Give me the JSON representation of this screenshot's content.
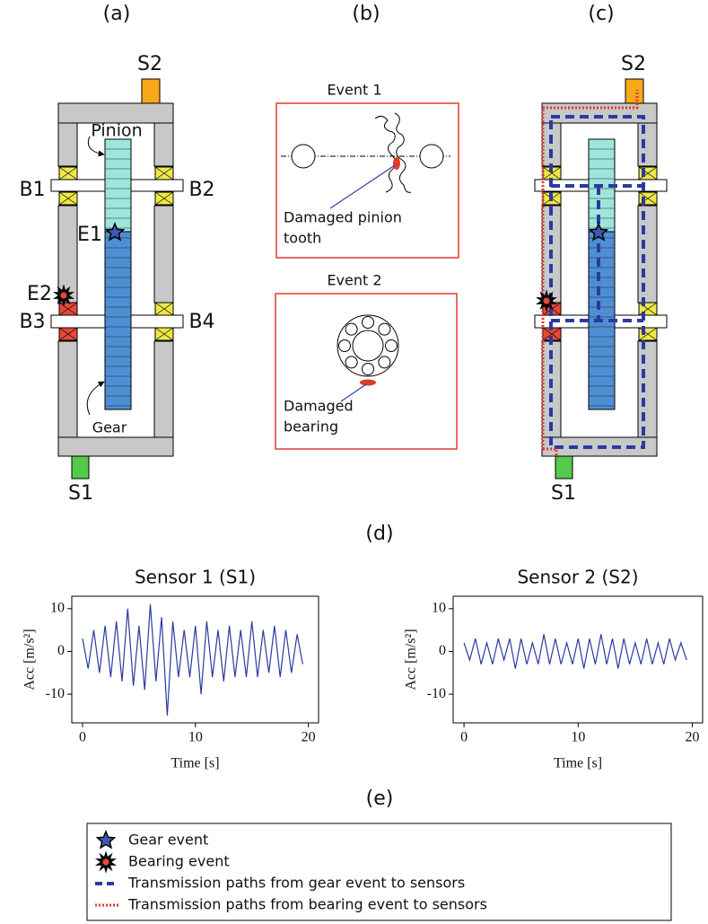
{
  "panel_labels": [
    "(a)",
    "(b)",
    "(c)",
    "(d)",
    "(e)"
  ],
  "panel_a": {
    "sensors": [
      "S2",
      "S1"
    ],
    "parts": [
      "Pinion",
      "Gear"
    ],
    "bearings": [
      "B1",
      "B2",
      "B3",
      "B4"
    ],
    "events": [
      "E1",
      "E2"
    ]
  },
  "panel_b": {
    "event_1": {
      "title": "Event 1",
      "label": [
        "Damaged pinion",
        "tooth"
      ]
    },
    "event_2": {
      "title": "Event 2",
      "label": [
        "Damaged",
        "bearing"
      ]
    }
  },
  "panel_c": {
    "sensors": [
      "S2",
      "S1"
    ]
  },
  "chart_data": [
    {
      "type": "line",
      "title": "Sensor 1 (S1)",
      "xlabel": "Time [s]",
      "ylabel": "Acc [m/s²]",
      "color": "#2b3aa0",
      "xlim": [
        -0.95,
        20.9
      ],
      "ylim": [
        -16.7,
        12.9
      ],
      "xticks": [
        0,
        10,
        20
      ],
      "yticks": [
        -10,
        0,
        10
      ],
      "x": [
        0,
        0.5,
        1,
        1.5,
        2,
        2.5,
        3,
        3.5,
        4,
        4.5,
        5,
        5.5,
        6,
        6.5,
        7,
        7.5,
        8,
        8.5,
        9,
        9.5,
        10,
        10.5,
        11,
        11.5,
        12,
        12.5,
        13,
        13.5,
        14,
        14.5,
        15,
        15.5,
        16,
        16.5,
        17,
        17.5,
        18,
        18.5,
        19,
        19.5
      ],
      "values": [
        3,
        -4,
        5,
        -5,
        6,
        -6,
        7,
        -7,
        10,
        -8,
        6,
        -9,
        11,
        -7,
        8,
        -15,
        7,
        -6,
        5,
        -6,
        6,
        -10,
        7,
        -6,
        5,
        -7,
        6,
        -6,
        5,
        -6,
        7,
        -6,
        5,
        -5,
        6,
        -6,
        5,
        -5,
        4,
        -3
      ]
    },
    {
      "type": "line",
      "title": "Sensor 2 (S2)",
      "xlabel": "Time [s]",
      "ylabel": "Acc [m/s²]",
      "color": "#2b3aa0",
      "xlim": [
        -0.95,
        20.9
      ],
      "ylim": [
        -16.7,
        12.9
      ],
      "xticks": [
        0,
        10,
        20
      ],
      "yticks": [
        -10,
        0,
        10
      ],
      "x": [
        0,
        0.5,
        1,
        1.5,
        2,
        2.5,
        3,
        3.5,
        4,
        4.5,
        5,
        5.5,
        6,
        6.5,
        7,
        7.5,
        8,
        8.5,
        9,
        9.5,
        10,
        10.5,
        11,
        11.5,
        12,
        12.5,
        13,
        13.5,
        14,
        14.5,
        15,
        15.5,
        16,
        16.5,
        17,
        17.5,
        18,
        18.5,
        19,
        19.5
      ],
      "values": [
        2,
        -2,
        3,
        -3,
        2,
        -3,
        3,
        -2,
        3,
        -4,
        3,
        -3,
        2,
        -3,
        4,
        -3,
        3,
        -3,
        2,
        -3,
        3,
        -4,
        3,
        -3,
        4,
        -3,
        3,
        -4,
        3,
        -3,
        2,
        -3,
        3,
        -3,
        2,
        -3,
        3,
        -2,
        2,
        -2
      ]
    }
  ],
  "legend": [
    "Gear event",
    "Bearing event",
    "Transmission paths from gear event to sensors",
    "Transmission paths from bearing event to sensors"
  ]
}
